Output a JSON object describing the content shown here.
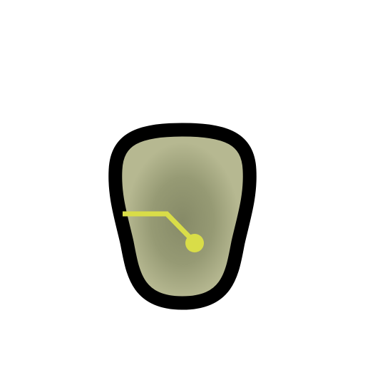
{
  "figure": {
    "shape": "rounded-tapered-blob",
    "outline_color": "#000000",
    "fill_outer_color": "#b6b891",
    "fill_inner_color": "#868a67",
    "connector_color": "#d9dd48",
    "icons": [
      "blob-body",
      "connector-line",
      "connector-dot"
    ]
  }
}
